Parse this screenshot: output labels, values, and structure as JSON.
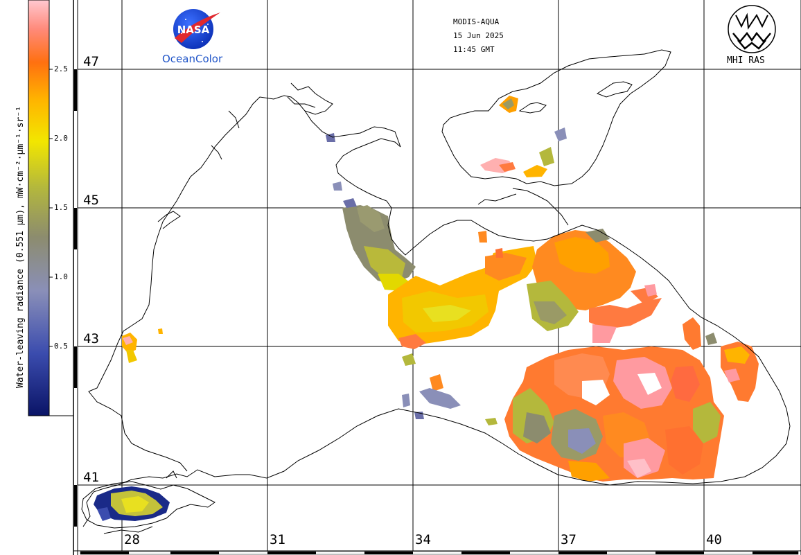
{
  "header": {
    "sensor": "MODIS-AQUA",
    "date": "15 Jun 2025",
    "time": "11:45 GMT"
  },
  "logos": {
    "nasa_text": "NASA",
    "oceancolor_text": "OceanColor",
    "mhi_text": "MHI RAS"
  },
  "colorbar": {
    "title": "Water-leaving radiance (0.551 µm), mW·cm⁻²·µm⁻¹·sr⁻¹",
    "min": 0.0,
    "max": 3.0,
    "ticks": [
      "2.5",
      "2.0",
      "1.5",
      "1.0",
      "0.5"
    ],
    "colors": [
      "#0a1466",
      "#3b4cae",
      "#8a8fb8",
      "#8c8c6e",
      "#b4b83c",
      "#f2e600",
      "#ffb400",
      "#ff7010",
      "#ff8a7a",
      "#ffc8d0"
    ]
  },
  "map": {
    "lat_labels": [
      "47",
      "45",
      "43",
      "41"
    ],
    "lon_labels": [
      "28",
      "31",
      "34",
      "37",
      "40"
    ],
    "grid": true
  }
}
